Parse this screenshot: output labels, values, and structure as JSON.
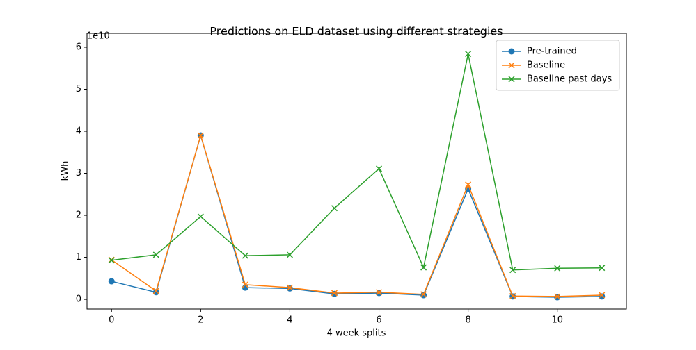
{
  "chart_data": {
    "type": "line",
    "title": "Predictions on ELD dataset using different strategies",
    "x_label": "4 week splits",
    "y_label": "kWh",
    "y_offset_label": "1e10",
    "x": [
      0,
      1,
      2,
      3,
      4,
      5,
      6,
      7,
      8,
      9,
      10,
      11
    ],
    "series": [
      {
        "name": "Pre-trained",
        "color": "#1f77b4",
        "marker": "circle",
        "values": [
          0.43,
          0.17,
          3.9,
          0.28,
          0.26,
          0.13,
          0.15,
          0.1,
          2.63,
          0.07,
          0.05,
          0.07
        ]
      },
      {
        "name": "Baseline",
        "color": "#ff7f0e",
        "marker": "x",
        "values": [
          0.94,
          0.2,
          3.9,
          0.35,
          0.28,
          0.15,
          0.17,
          0.12,
          2.73,
          0.08,
          0.07,
          0.1
        ]
      },
      {
        "name": "Baseline past days",
        "color": "#2ca02c",
        "marker": "x",
        "values": [
          0.93,
          1.06,
          1.97,
          1.04,
          1.06,
          2.17,
          3.11,
          0.76,
          5.84,
          0.7,
          0.74,
          0.75
        ]
      }
    ],
    "xlim": [
      -0.55,
      11.55
    ],
    "ylim": [
      -0.23,
      6.33
    ],
    "xticks": [
      0,
      2,
      4,
      6,
      8,
      10
    ],
    "yticks": [
      0,
      1,
      2,
      3,
      4,
      5,
      6
    ],
    "grid": false,
    "legend": "upper right"
  }
}
